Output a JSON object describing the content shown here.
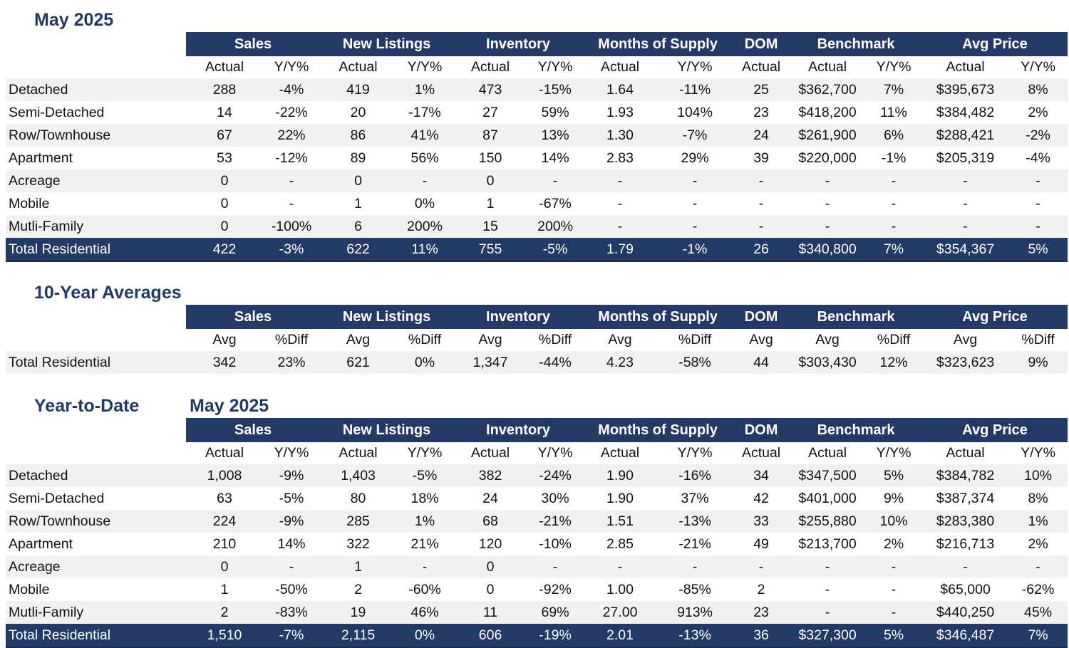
{
  "month_section": {
    "title": "May 2025",
    "groups": [
      "Sales",
      "New Listings",
      "Inventory",
      "Months of Supply",
      "DOM",
      "Benchmark",
      "Avg Price"
    ],
    "subheaders": [
      "Actual",
      "Y/Y%",
      "Actual",
      "Y/Y%",
      "Actual",
      "Y/Y%",
      "Actual",
      "Y/Y%",
      "Actual",
      "Actual",
      "Y/Y%",
      "Actual",
      "Y/Y%"
    ],
    "rows": [
      {
        "label": "Detached",
        "values": [
          "288",
          "-4%",
          "419",
          "1%",
          "473",
          "-15%",
          "1.64",
          "-11%",
          "25",
          "$362,700",
          "7%",
          "$395,673",
          "8%"
        ]
      },
      {
        "label": "Semi-Detached",
        "values": [
          "14",
          "-22%",
          "20",
          "-17%",
          "27",
          "59%",
          "1.93",
          "104%",
          "23",
          "$418,200",
          "11%",
          "$384,482",
          "2%"
        ]
      },
      {
        "label": "Row/Townhouse",
        "values": [
          "67",
          "22%",
          "86",
          "41%",
          "87",
          "13%",
          "1.30",
          "-7%",
          "24",
          "$261,900",
          "6%",
          "$288,421",
          "-2%"
        ]
      },
      {
        "label": "Apartment",
        "values": [
          "53",
          "-12%",
          "89",
          "56%",
          "150",
          "14%",
          "2.83",
          "29%",
          "39",
          "$220,000",
          "-1%",
          "$205,319",
          "-4%"
        ]
      },
      {
        "label": "Acreage",
        "values": [
          "0",
          "-",
          "0",
          "-",
          "0",
          "-",
          "-",
          "-",
          "-",
          "-",
          "-",
          "-",
          "-"
        ]
      },
      {
        "label": "Mobile",
        "values": [
          "0",
          "-",
          "1",
          "0%",
          "1",
          "-67%",
          "-",
          "-",
          "-",
          "-",
          "-",
          "-",
          "-"
        ]
      },
      {
        "label": "Mutli-Family",
        "values": [
          "0",
          "-100%",
          "6",
          "200%",
          "15",
          "200%",
          "-",
          "-",
          "-",
          "-",
          "-",
          "-",
          "-"
        ]
      }
    ],
    "total": {
      "label": "Total Residential",
      "values": [
        "422",
        "-3%",
        "622",
        "11%",
        "755",
        "-5%",
        "1.79",
        "-1%",
        "26",
        "$340,800",
        "7%",
        "$354,367",
        "5%"
      ]
    }
  },
  "ten_year_section": {
    "title": "10-Year Averages",
    "groups": [
      "Sales",
      "New Listings",
      "Inventory",
      "Months of Supply",
      "DOM",
      "Benchmark",
      "Avg Price"
    ],
    "subheaders": [
      "Avg",
      "%Diff",
      "Avg",
      "%Diff",
      "Avg",
      "%Diff",
      "Avg",
      "%Diff",
      "Avg",
      "Avg",
      "%Diff",
      "Avg",
      "%Diff"
    ],
    "rows": [
      {
        "label": "Total Residential",
        "values": [
          "342",
          "23%",
          "621",
          "0%",
          "1,347",
          "-44%",
          "4.23",
          "-58%",
          "44",
          "$303,430",
          "12%",
          "$323,623",
          "9%"
        ]
      }
    ]
  },
  "ytd_section": {
    "title": "Year-to-Date",
    "subtitle": "May 2025",
    "groups": [
      "Sales",
      "New Listings",
      "Inventory",
      "Months of Supply",
      "DOM",
      "Benchmark",
      "Avg Price"
    ],
    "subheaders": [
      "Actual",
      "Y/Y%",
      "Actual",
      "Y/Y%",
      "Actual",
      "Y/Y%",
      "Actual",
      "Y/Y%",
      "Actual",
      "Actual",
      "Y/Y%",
      "Actual",
      "Y/Y%"
    ],
    "rows": [
      {
        "label": "Detached",
        "values": [
          "1,008",
          "-9%",
          "1,403",
          "-5%",
          "382",
          "-24%",
          "1.90",
          "-16%",
          "34",
          "$347,500",
          "5%",
          "$384,782",
          "10%"
        ]
      },
      {
        "label": "Semi-Detached",
        "values": [
          "63",
          "-5%",
          "80",
          "18%",
          "24",
          "30%",
          "1.90",
          "37%",
          "42",
          "$401,000",
          "9%",
          "$387,374",
          "8%"
        ]
      },
      {
        "label": "Row/Townhouse",
        "values": [
          "224",
          "-9%",
          "285",
          "1%",
          "68",
          "-21%",
          "1.51",
          "-13%",
          "33",
          "$255,880",
          "10%",
          "$283,380",
          "1%"
        ]
      },
      {
        "label": "Apartment",
        "values": [
          "210",
          "14%",
          "322",
          "21%",
          "120",
          "-10%",
          "2.85",
          "-21%",
          "49",
          "$213,700",
          "2%",
          "$216,713",
          "2%"
        ]
      },
      {
        "label": "Acreage",
        "values": [
          "0",
          "-",
          "1",
          "-",
          "0",
          "-",
          "-",
          "-",
          "-",
          "-",
          "-",
          "-",
          "-"
        ]
      },
      {
        "label": "Mobile",
        "values": [
          "1",
          "-50%",
          "2",
          "-60%",
          "0",
          "-92%",
          "1.00",
          "-85%",
          "2",
          "-",
          "-",
          "$65,000",
          "-62%"
        ]
      },
      {
        "label": "Mutli-Family",
        "values": [
          "2",
          "-83%",
          "19",
          "46%",
          "11",
          "69%",
          "27.00",
          "913%",
          "23",
          "-",
          "-",
          "$440,250",
          "45%"
        ]
      }
    ],
    "total": {
      "label": "Total Residential",
      "values": [
        "1,510",
        "-7%",
        "2,115",
        "0%",
        "606",
        "-19%",
        "2.01",
        "-13%",
        "36",
        "$327,300",
        "5%",
        "$346,487",
        "7%"
      ]
    }
  }
}
